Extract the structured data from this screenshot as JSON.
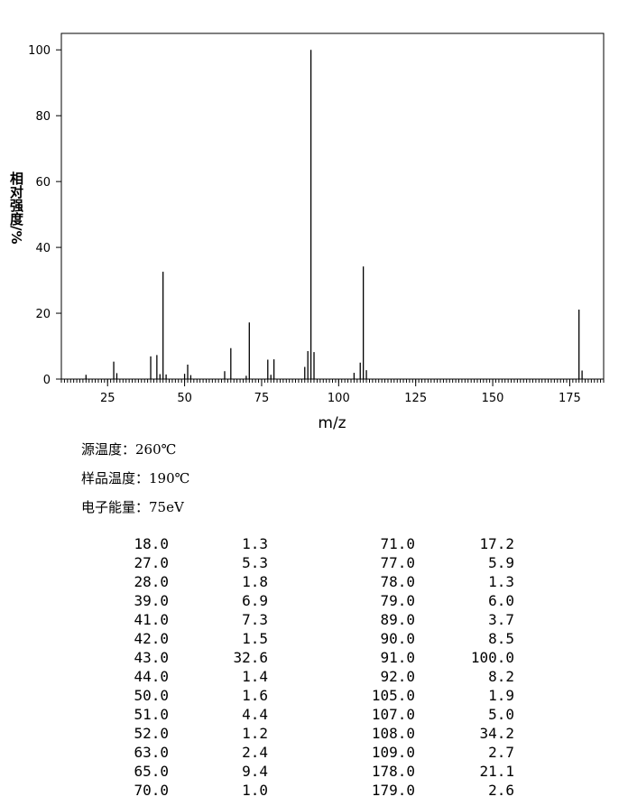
{
  "chart_data": {
    "type": "stem",
    "x_label": "m/z",
    "y_label": "相对强度/%",
    "x": [
      18,
      27,
      28,
      39,
      41,
      42,
      43,
      44,
      50,
      51,
      52,
      63,
      65,
      70,
      71,
      77,
      78,
      79,
      89,
      90,
      91,
      92,
      105,
      107,
      108,
      109,
      178,
      179
    ],
    "values": [
      1.3,
      5.3,
      1.8,
      6.9,
      7.3,
      1.5,
      32.6,
      1.4,
      1.6,
      4.4,
      1.2,
      2.4,
      9.4,
      1.0,
      17.2,
      5.9,
      1.3,
      6.0,
      3.7,
      8.5,
      100.0,
      8.2,
      1.9,
      5.0,
      34.2,
      2.7,
      21.1,
      2.6
    ],
    "color": "#000000",
    "xlim": [
      10,
      186
    ],
    "ylim": [
      0,
      105
    ],
    "xticks": [
      25,
      50,
      75,
      100,
      125,
      150,
      175
    ],
    "yticks": [
      0,
      20,
      40,
      60,
      80,
      100
    ]
  },
  "conditions": [
    "源温度：260℃",
    "样品温度：190℃",
    "电子能量：75eV"
  ],
  "table": {
    "rows": [
      [
        "18.0",
        "1.3",
        "71.0",
        "17.2"
      ],
      [
        "27.0",
        "5.3",
        "77.0",
        "5.9"
      ],
      [
        "28.0",
        "1.8",
        "78.0",
        "1.3"
      ],
      [
        "39.0",
        "6.9",
        "79.0",
        "6.0"
      ],
      [
        "41.0",
        "7.3",
        "89.0",
        "3.7"
      ],
      [
        "42.0",
        "1.5",
        "90.0",
        "8.5"
      ],
      [
        "43.0",
        "32.6",
        "91.0",
        "100.0"
      ],
      [
        "44.0",
        "1.4",
        "92.0",
        "8.2"
      ],
      [
        "50.0",
        "1.6",
        "105.0",
        "1.9"
      ],
      [
        "51.0",
        "4.4",
        "107.0",
        "5.0"
      ],
      [
        "52.0",
        "1.2",
        "108.0",
        "34.2"
      ],
      [
        "63.0",
        "2.4",
        "109.0",
        "2.7"
      ],
      [
        "65.0",
        "9.4",
        "178.0",
        "21.1"
      ],
      [
        "70.0",
        "1.0",
        "179.0",
        "2.6"
      ]
    ]
  }
}
